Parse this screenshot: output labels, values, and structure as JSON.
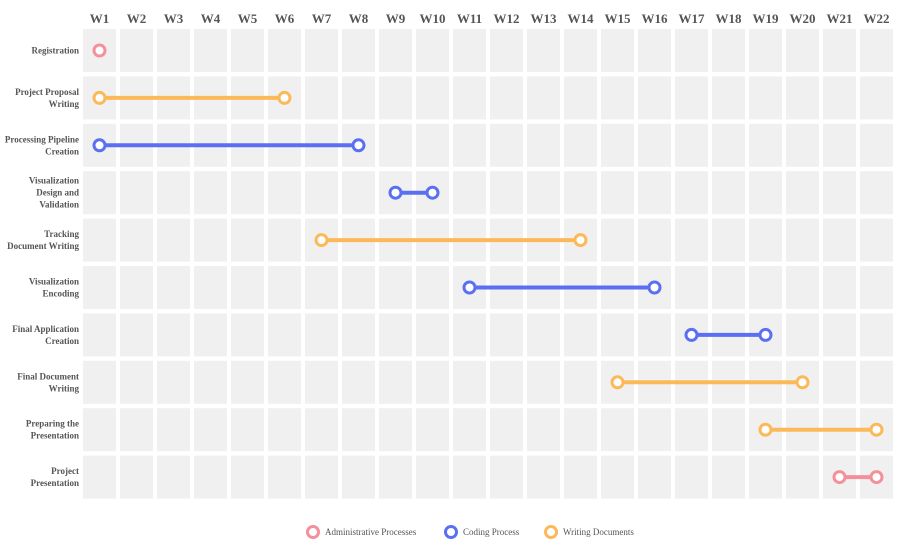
{
  "chart_data": {
    "type": "gantt",
    "title": "",
    "weeks": [
      "W1",
      "W2",
      "W3",
      "W4",
      "W5",
      "W6",
      "W7",
      "W8",
      "W9",
      "W10",
      "W11",
      "W12",
      "W13",
      "W14",
      "W15",
      "W16",
      "W17",
      "W18",
      "W19",
      "W20",
      "W21",
      "W22"
    ],
    "tasks": [
      {
        "label": [
          "Registration"
        ],
        "category": "Administrative Processes",
        "start": 1.0,
        "end": 1.0
      },
      {
        "label": [
          "Project Proposal",
          "Writing"
        ],
        "category": "Writing Documents",
        "start": 1.0,
        "end": 6.0
      },
      {
        "label": [
          "Processing Pipeline",
          "Creation"
        ],
        "category": "Coding Process",
        "start": 1.0,
        "end": 8.0
      },
      {
        "label": [
          "Visualization",
          "Design and",
          "Validation"
        ],
        "category": "Coding Process",
        "start": 9.0,
        "end": 10.0
      },
      {
        "label": [
          "Tracking",
          "Document Writing"
        ],
        "category": "Writing Documents",
        "start": 7.0,
        "end": 14.0
      },
      {
        "label": [
          "Visualization",
          "Encoding"
        ],
        "category": "Coding Process",
        "start": 11.0,
        "end": 16.0
      },
      {
        "label": [
          "Final Application",
          "Creation"
        ],
        "category": "Coding Process",
        "start": 17.0,
        "end": 19.0
      },
      {
        "label": [
          "Final Document",
          "Writing"
        ],
        "category": "Writing Documents",
        "start": 15.0,
        "end": 20.0
      },
      {
        "label": [
          "Preparing the",
          "Presentation"
        ],
        "category": "Writing Documents",
        "start": 19.0,
        "end": 22.0
      },
      {
        "label": [
          "Project",
          "Presentation"
        ],
        "category": "Administrative Processes",
        "start": 21.0,
        "end": 22.0
      }
    ],
    "legend": {
      "position": "bottom-center",
      "entries": [
        {
          "name": "Administrative Processes",
          "color": "#f4909a"
        },
        {
          "name": "Coding Process",
          "color": "#5b6ff2"
        },
        {
          "name": "Writing Documents",
          "color": "#fbb95a"
        }
      ]
    },
    "grid": true,
    "colors": {
      "cell": "#f0f0f0",
      "label_text": "#555555",
      "background": "#ffffff"
    }
  }
}
